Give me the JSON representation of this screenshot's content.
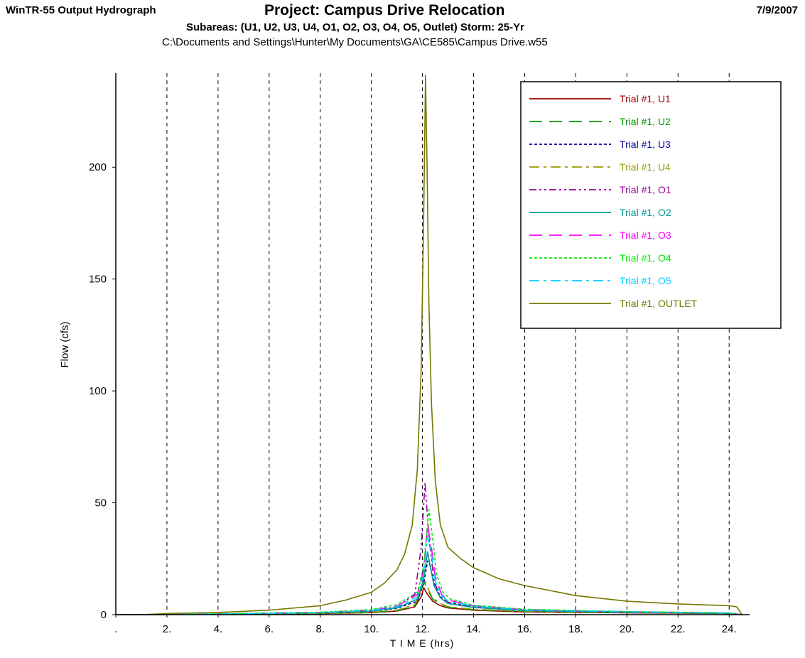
{
  "header": {
    "app_title": "WinTR-55 Output Hydrograph",
    "project_title": "Project: Campus Drive Relocation",
    "date": "7/9/2007",
    "subtitle": "Subareas: (U1, U2, U3, U4, O1, O2, O3, O4, O5, Outlet)  Storm: 25-Yr",
    "file_path": "C:\\Documents and Settings\\Hunter\\My Documents\\GA\\CE585\\Campus Drive.w55"
  },
  "chart_data": {
    "type": "line",
    "title": "",
    "xlabel": "T I M E (hrs)",
    "ylabel": "Flow (cfs)",
    "xlim": [
      0,
      24.8
    ],
    "ylim": [
      0,
      242
    ],
    "xticks": [
      0,
      2,
      4,
      6,
      8,
      10,
      12,
      14,
      16,
      18,
      20,
      22,
      24
    ],
    "xtick_labels": [
      ".",
      "2.",
      "4.",
      "6.",
      "8.",
      "10.",
      "12.",
      "14.",
      "16.",
      "18.",
      "20.",
      "22.",
      "24."
    ],
    "yticks": [
      0,
      50,
      100,
      150,
      200
    ],
    "ytick_labels": [
      "0",
      "50",
      "100",
      "150",
      "200"
    ],
    "grid": "vertical dashed",
    "legend_position": "top-right",
    "series": [
      {
        "name": "Trial #1, U1",
        "color": "#990000",
        "dash": "",
        "x": [
          0,
          1,
          4,
          8,
          10,
          11,
          11.7,
          11.95,
          12.05,
          12.2,
          12.4,
          12.7,
          13,
          14,
          16,
          20,
          24,
          24.5
        ],
        "y": [
          0,
          0,
          0.2,
          0.5,
          0.9,
          1.6,
          3.5,
          8,
          12,
          9,
          6,
          4,
          3,
          2,
          1.2,
          0.8,
          0.5,
          0
        ]
      },
      {
        "name": "Trial #1, U2",
        "color": "#009900",
        "dash": "18,10",
        "x": [
          0,
          1,
          4,
          8,
          10,
          11,
          11.7,
          11.95,
          12.05,
          12.2,
          12.4,
          12.7,
          13,
          14,
          16,
          20,
          24,
          24.5
        ],
        "y": [
          0,
          0,
          0.2,
          0.5,
          1,
          1.8,
          4,
          10,
          15,
          11,
          7,
          4.5,
          3.3,
          2.2,
          1.4,
          0.9,
          0.5,
          0
        ]
      },
      {
        "name": "Trial #1, U3",
        "color": "#000099",
        "dash": "4,3",
        "x": [
          0,
          1,
          4,
          8,
          10,
          11,
          11.8,
          12.05,
          12.2,
          12.3,
          12.45,
          12.7,
          13,
          14,
          16,
          20,
          24,
          24.5
        ],
        "y": [
          0,
          0,
          0.3,
          0.8,
          1.5,
          2.8,
          6,
          14,
          24,
          22,
          14,
          8,
          5.5,
          3.5,
          2,
          1.2,
          0.7,
          0
        ]
      },
      {
        "name": "Trial #1, U4",
        "color": "#999900",
        "dash": "14,6,4,6",
        "x": [
          0,
          1,
          4,
          8,
          10,
          11,
          11.7,
          11.95,
          12.05,
          12.2,
          12.4,
          12.7,
          13,
          14,
          16,
          20,
          24,
          24.5
        ],
        "y": [
          0,
          0,
          0.2,
          0.6,
          1.1,
          2,
          4.5,
          11,
          17,
          12,
          7.5,
          5,
          3.6,
          2.4,
          1.5,
          1,
          0.6,
          0
        ]
      },
      {
        "name": "Trial #1, O1",
        "color": "#990099",
        "dash": "10,4,3,4,3,4",
        "x": [
          0,
          1,
          4,
          8,
          10,
          11,
          11.7,
          11.95,
          12.1,
          12.25,
          12.45,
          12.7,
          13,
          14,
          16,
          20,
          24,
          24.5
        ],
        "y": [
          0,
          0,
          0.3,
          0.9,
          1.8,
          3.5,
          9,
          30,
          59,
          35,
          15,
          8,
          5.5,
          3.5,
          2,
          1.2,
          0.7,
          0
        ]
      },
      {
        "name": "Trial #1, O2",
        "color": "#009999",
        "dash": "",
        "x": [
          0,
          1,
          4,
          8,
          10,
          11,
          11.8,
          12.05,
          12.2,
          12.3,
          12.45,
          12.7,
          13,
          14,
          16,
          20,
          24,
          24.5
        ],
        "y": [
          0,
          0,
          0.3,
          0.8,
          1.6,
          3,
          7,
          16,
          28,
          22,
          13,
          7.5,
          5,
          3.2,
          1.8,
          1.1,
          0.6,
          0
        ]
      },
      {
        "name": "Trial #1, O3",
        "color": "#ff00ff",
        "dash": "18,10",
        "x": [
          0,
          1,
          4,
          8,
          10,
          11,
          11.8,
          12.05,
          12.2,
          12.35,
          12.5,
          12.75,
          13,
          14,
          16,
          20,
          24,
          24.5
        ],
        "y": [
          0,
          0,
          0.4,
          1,
          2,
          3.8,
          9,
          20,
          40,
          30,
          17,
          9,
          6.5,
          4,
          2.2,
          1.3,
          0.8,
          0
        ]
      },
      {
        "name": "Trial #1, O4",
        "color": "#00ee00",
        "dash": "4,3",
        "x": [
          0,
          1,
          4,
          8,
          10,
          11,
          11.8,
          12.05,
          12.25,
          12.4,
          12.55,
          12.8,
          13.1,
          14,
          16,
          20,
          24,
          24.5
        ],
        "y": [
          0,
          0,
          0.4,
          1.1,
          2.3,
          4.5,
          10,
          22,
          47,
          34,
          18,
          10,
          7,
          4.2,
          2.4,
          1.4,
          0.8,
          0
        ]
      },
      {
        "name": "Trial #1, O5",
        "color": "#00ccff",
        "dash": "14,6,4,6",
        "x": [
          0,
          1,
          4,
          8,
          10,
          11,
          11.8,
          12.05,
          12.2,
          12.35,
          12.5,
          12.75,
          13,
          14,
          16,
          20,
          24,
          24.5
        ],
        "y": [
          0,
          0,
          0.3,
          0.9,
          1.9,
          3.5,
          8,
          18,
          35,
          27,
          15,
          8.5,
          6,
          3.8,
          2.1,
          1.3,
          0.7,
          0
        ]
      },
      {
        "name": "Trial #1, OUTLET",
        "color": "#777700",
        "dash": "",
        "x": [
          0,
          1,
          2,
          4,
          6,
          8,
          9,
          10,
          10.5,
          11,
          11.3,
          11.6,
          11.8,
          11.95,
          12.05,
          12.12,
          12.18,
          12.25,
          12.35,
          12.5,
          12.7,
          13,
          13.5,
          14,
          15,
          16,
          18,
          20,
          22,
          24,
          24.3,
          24.5
        ],
        "y": [
          0,
          0,
          0.5,
          1,
          2,
          4,
          6.5,
          10,
          14,
          20,
          27,
          40,
          65,
          110,
          180,
          241,
          200,
          140,
          95,
          60,
          40,
          30,
          25,
          21,
          16,
          13,
          8.5,
          6,
          4.8,
          4,
          3.5,
          0
        ]
      }
    ]
  }
}
